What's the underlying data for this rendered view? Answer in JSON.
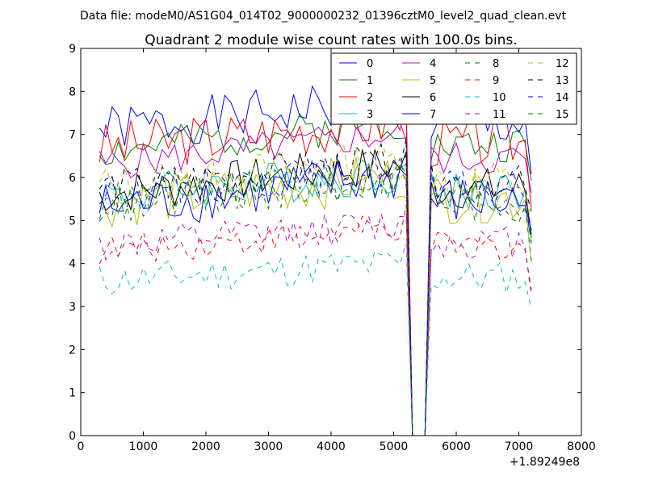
{
  "suptitle": "Data file: modeM0/AS1G04_014T02_9000000232_01396cztM0_level2_quad_clean.evt",
  "chart_data": {
    "type": "line",
    "title": "Quadrant 2 module wise count rates with 100.0s bins.",
    "xlabel": "",
    "ylabel": "",
    "x_offset_label": "+1.89249e8",
    "xlim": [
      0,
      8000
    ],
    "ylim": [
      0,
      9
    ],
    "xticks": [
      0,
      1000,
      2000,
      3000,
      4000,
      5000,
      6000,
      7000,
      8000
    ],
    "yticks": [
      0,
      1,
      2,
      3,
      4,
      5,
      6,
      7,
      8,
      9
    ],
    "x_start": 300,
    "x_step": 100,
    "legend_position": "top-right",
    "series": [
      {
        "name": "0",
        "color": "#0000ff",
        "dash": "solid",
        "base": 7.1,
        "trend": 0.7,
        "amp": 0.28,
        "seed": 1
      },
      {
        "name": "1",
        "color": "#007f00",
        "dash": "solid",
        "base": 6.6,
        "trend": 0.7,
        "amp": 0.22,
        "seed": 2
      },
      {
        "name": "2",
        "color": "#ff0000",
        "dash": "solid",
        "base": 6.7,
        "trend": 0.6,
        "amp": 0.3,
        "seed": 3
      },
      {
        "name": "3",
        "color": "#00bfbf",
        "dash": "solid",
        "base": 5.6,
        "trend": 0.5,
        "amp": 0.25,
        "seed": 4
      },
      {
        "name": "4",
        "color": "#bf00bf",
        "dash": "solid",
        "base": 6.3,
        "trend": 0.7,
        "amp": 0.2,
        "seed": 5
      },
      {
        "name": "5",
        "color": "#bfbf00",
        "dash": "solid",
        "base": 5.4,
        "trend": 0.6,
        "amp": 0.3,
        "seed": 6
      },
      {
        "name": "6",
        "color": "#000000",
        "dash": "solid",
        "base": 5.6,
        "trend": 0.7,
        "amp": 0.25,
        "seed": 7
      },
      {
        "name": "7",
        "color": "#0000ff",
        "dash": "solid",
        "base": 5.3,
        "trend": 0.7,
        "amp": 0.3,
        "seed": 8
      },
      {
        "name": "8",
        "color": "#007f00",
        "dash": "dashed",
        "base": 5.3,
        "trend": 0.7,
        "amp": 0.25,
        "seed": 9
      },
      {
        "name": "9",
        "color": "#ff0000",
        "dash": "dashed",
        "base": 4.3,
        "trend": 0.5,
        "amp": 0.18,
        "seed": 10
      },
      {
        "name": "10",
        "color": "#00bfbf",
        "dash": "dashed",
        "base": 3.6,
        "trend": 0.4,
        "amp": 0.2,
        "seed": 11
      },
      {
        "name": "11",
        "color": "#bf00bf",
        "dash": "dashed",
        "base": 4.4,
        "trend": 0.5,
        "amp": 0.2,
        "seed": 12
      },
      {
        "name": "12",
        "color": "#bfbf00",
        "dash": "dashed",
        "base": 5.8,
        "trend": 0.6,
        "amp": 0.25,
        "seed": 13
      },
      {
        "name": "13",
        "color": "#000000",
        "dash": "dashed",
        "base": 5.8,
        "trend": 0.6,
        "amp": 0.2,
        "seed": 14
      },
      {
        "name": "14",
        "color": "#0000ff",
        "dash": "dashed",
        "base": 5.6,
        "trend": 0.6,
        "amp": 0.22,
        "seed": 15
      },
      {
        "name": "15",
        "color": "#007f00",
        "dash": "dashed",
        "base": 5.4,
        "trend": 0.6,
        "amp": 0.25,
        "seed": 16
      }
    ]
  }
}
